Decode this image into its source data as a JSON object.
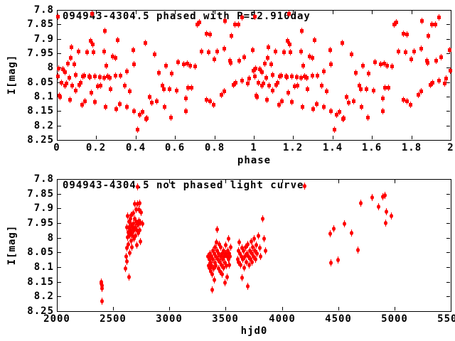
{
  "figure": {
    "background": "#ffffff",
    "point_color": "#ff0000",
    "axis_color": "#000000"
  },
  "chart_data": [
    {
      "type": "scatter",
      "title": "094943-4304.5 phased with P=52.910day",
      "xlabel": "phase",
      "ylabel": "I[mag]",
      "xlim": [
        0,
        2
      ],
      "ylim": [
        7.8,
        8.25
      ],
      "y_axis_inverted": true,
      "grid": false,
      "legend": "none",
      "marker": "filled-square-with-errorbar",
      "color": "#ff0000",
      "x_repeat_offsets": [
        0,
        1
      ],
      "x_ticks": [
        {
          "v": 0,
          "label": "0"
        },
        {
          "v": 0.2,
          "label": "0.2"
        },
        {
          "v": 0.4,
          "label": "0.4"
        },
        {
          "v": 0.6,
          "label": "0.6"
        },
        {
          "v": 0.8,
          "label": "0.8"
        },
        {
          "v": 1,
          "label": "1"
        },
        {
          "v": 1.2,
          "label": "1.2"
        },
        {
          "v": 1.4,
          "label": "1.4"
        },
        {
          "v": 1.6,
          "label": "1.6"
        },
        {
          "v": 1.8,
          "label": "1.8"
        },
        {
          "v": 2,
          "label": "2"
        }
      ],
      "y_ticks": [
        {
          "v": 7.8,
          "label": "7.8"
        },
        {
          "v": 7.85,
          "label": "7.85"
        },
        {
          "v": 7.9,
          "label": "7.9"
        },
        {
          "v": 7.95,
          "label": "7.95"
        },
        {
          "v": 8,
          "label": "8"
        },
        {
          "v": 8.05,
          "label": "8.05"
        },
        {
          "v": 8.1,
          "label": "8.1"
        },
        {
          "v": 8.15,
          "label": "8.15"
        },
        {
          "v": 8.2,
          "label": "8.2"
        },
        {
          "v": 8.25,
          "label": "8.25"
        }
      ],
      "points": [
        [
          0.002,
          7.823
        ],
        [
          0.005,
          8.029
        ],
        [
          0.007,
          8.001
        ],
        [
          0.011,
          8.094
        ],
        [
          0.015,
          8.1
        ],
        [
          0.02,
          8.05
        ],
        [
          0.03,
          8.005
        ],
        [
          0.041,
          8.013
        ],
        [
          0.041,
          8.061
        ],
        [
          0.046,
          8.054
        ],
        [
          0.054,
          7.985
        ],
        [
          0.062,
          8.033
        ],
        [
          0.065,
          8.11
        ],
        [
          0.07,
          7.964
        ],
        [
          0.072,
          7.927
        ],
        [
          0.075,
          8.061
        ],
        [
          0.086,
          7.988
        ],
        [
          0.094,
          8.023
        ],
        [
          0.095,
          8.077
        ],
        [
          0.108,
          7.942
        ],
        [
          0.112,
          8.057
        ],
        [
          0.12,
          8.051
        ],
        [
          0.127,
          8.127
        ],
        [
          0.129,
          8.028
        ],
        [
          0.137,
          8.027
        ],
        [
          0.14,
          8.114
        ],
        [
          0.15,
          7.944
        ],
        [
          0.161,
          8.028
        ],
        [
          0.165,
          8.03
        ],
        [
          0.168,
          7.905
        ],
        [
          0.173,
          8.085
        ],
        [
          0.176,
          7.812
        ],
        [
          0.181,
          7.917
        ],
        [
          0.185,
          7.946
        ],
        [
          0.191,
          8.028
        ],
        [
          0.193,
          8.118
        ],
        [
          0.206,
          8.062
        ],
        [
          0.215,
          8.03
        ],
        [
          0.221,
          8.061
        ],
        [
          0.239,
          7.942
        ],
        [
          0.239,
          8.033
        ],
        [
          0.241,
          7.872
        ],
        [
          0.245,
          8.134
        ],
        [
          0.249,
          7.993
        ],
        [
          0.257,
          8.028
        ],
        [
          0.267,
          8.034
        ],
        [
          0.269,
          8.073
        ],
        [
          0.283,
          7.96
        ],
        [
          0.296,
          8.025
        ],
        [
          0.297,
          7.964
        ],
        [
          0.299,
          8.143
        ],
        [
          0.308,
          7.903
        ],
        [
          0.318,
          8.125
        ],
        [
          0.32,
          8.025
        ],
        [
          0.342,
          8.061
        ],
        [
          0.353,
          8.012
        ],
        [
          0.353,
          8.134
        ],
        [
          0.37,
          8.08
        ],
        [
          0.388,
          7.938
        ],
        [
          0.39,
          7.988
        ],
        [
          0.39,
          8.15
        ],
        [
          0.408,
          8.212
        ],
        [
          0.42,
          8.162
        ],
        [
          0.432,
          8.151
        ],
        [
          0.446,
          7.912
        ],
        [
          0.45,
          8.175
        ],
        [
          0.455,
          8.174
        ],
        [
          0.47,
          8.1
        ],
        [
          0.48,
          8.12
        ],
        [
          0.495,
          7.953
        ],
        [
          0.504,
          8.114
        ],
        [
          0.516,
          8.016
        ],
        [
          0.534,
          8.061
        ],
        [
          0.54,
          8.073
        ],
        [
          0.546,
          8.134
        ],
        [
          0.552,
          7.991
        ],
        [
          0.57,
          8.073
        ],
        [
          0.577,
          8.172
        ],
        [
          0.582,
          8.02
        ],
        [
          0.606,
          8.077
        ],
        [
          0.612,
          7.979
        ],
        [
          0.642,
          7.987
        ],
        [
          0.654,
          8.106
        ],
        [
          0.655,
          8.149
        ],
        [
          0.66,
          7.985
        ],
        [
          0.666,
          8.069
        ],
        [
          0.676,
          7.991
        ],
        [
          0.684,
          8.069
        ],
        [
          0.702,
          7.995
        ],
        [
          0.711,
          7.849
        ],
        [
          0.723,
          7.843
        ],
        [
          0.733,
          7.942
        ],
        [
          0.757,
          7.881
        ],
        [
          0.757,
          8.11
        ],
        [
          0.769,
          7.946
        ],
        [
          0.775,
          7.884
        ],
        [
          0.775,
          8.114
        ],
        [
          0.793,
          8.126
        ],
        [
          0.799,
          7.969
        ],
        [
          0.813,
          7.942
        ],
        [
          0.835,
          8.093
        ],
        [
          0.847,
          8.081
        ],
        [
          0.849,
          7.934
        ],
        [
          0.853,
          7.836
        ],
        [
          0.877,
          7.975
        ],
        [
          0.881,
          7.983
        ],
        [
          0.883,
          7.889
        ],
        [
          0.895,
          8.057
        ],
        [
          0.901,
          7.849
        ],
        [
          0.907,
          8.051
        ],
        [
          0.919,
          7.848
        ],
        [
          0.925,
          7.975
        ],
        [
          0.937,
          7.824
        ],
        [
          0.937,
          8.044
        ],
        [
          0.951,
          7.962
        ],
        [
          0.967,
          8.053
        ],
        [
          0.973,
          8.037
        ],
        [
          0.992,
          7.938
        ],
        [
          0.997,
          8.008
        ]
      ]
    },
    {
      "type": "scatter",
      "title": "094943-4304.5 not phased light curve",
      "xlabel": "hjd0",
      "ylabel": "I[mag]",
      "xlim": [
        2000,
        5500
      ],
      "ylim": [
        7.8,
        8.25
      ],
      "y_axis_inverted": true,
      "grid": false,
      "legend": "none",
      "marker": "filled-circle-with-errorbar",
      "color": "#ff0000",
      "x_repeat_offsets": [
        0
      ],
      "x_ticks": [
        {
          "v": 2000,
          "label": "2000"
        },
        {
          "v": 2500,
          "label": "2500"
        },
        {
          "v": 3000,
          "label": "3000"
        },
        {
          "v": 3500,
          "label": "3500"
        },
        {
          "v": 4000,
          "label": "4000"
        },
        {
          "v": 4500,
          "label": "4500"
        },
        {
          "v": 5000,
          "label": "5000"
        },
        {
          "v": 5500,
          "label": "5500"
        }
      ],
      "y_ticks": [
        {
          "v": 7.8,
          "label": "7.8"
        },
        {
          "v": 7.85,
          "label": "7.85"
        },
        {
          "v": 7.9,
          "label": "7.9"
        },
        {
          "v": 7.95,
          "label": "7.95"
        },
        {
          "v": 8,
          "label": "8"
        },
        {
          "v": 8.05,
          "label": "8.05"
        },
        {
          "v": 8.1,
          "label": "8.1"
        },
        {
          "v": 8.15,
          "label": "8.15"
        },
        {
          "v": 8.2,
          "label": "8.2"
        },
        {
          "v": 8.25,
          "label": "8.25"
        }
      ],
      "points": [
        [
          2390,
          8.149
        ],
        [
          2394,
          8.154
        ],
        [
          2396,
          8.161
        ],
        [
          2399,
          8.17
        ],
        [
          2398,
          8.213
        ],
        [
          2608,
          8.103
        ],
        [
          2612,
          8.062
        ],
        [
          2616,
          8.033
        ],
        [
          2620,
          8.078
        ],
        [
          2622,
          7.961
        ],
        [
          2625,
          7.996
        ],
        [
          2628,
          7.924
        ],
        [
          2631,
          7.979
        ],
        [
          2634,
          8.021
        ],
        [
          2637,
          7.943
        ],
        [
          2640,
          8.131
        ],
        [
          2641,
          7.962
        ],
        [
          2644,
          7.989
        ],
        [
          2647,
          8.049
        ],
        [
          2650,
          7.932
        ],
        [
          2652,
          7.972
        ],
        [
          2655,
          8.009
        ],
        [
          2658,
          7.952
        ],
        [
          2660,
          7.921
        ],
        [
          2663,
          7.981
        ],
        [
          2666,
          8.031
        ],
        [
          2669,
          7.962
        ],
        [
          2672,
          7.992
        ],
        [
          2675,
          7.913
        ],
        [
          2678,
          7.951
        ],
        [
          2681,
          8.001
        ],
        [
          2684,
          7.971
        ],
        [
          2687,
          7.932
        ],
        [
          2690,
          7.882
        ],
        [
          2693,
          7.961
        ],
        [
          2696,
          7.991
        ],
        [
          2699,
          7.942
        ],
        [
          2702,
          7.901
        ],
        [
          2705,
          7.971
        ],
        [
          2708,
          8.022
        ],
        [
          2711,
          7.951
        ],
        [
          2714,
          7.883
        ],
        [
          2717,
          7.824
        ],
        [
          2720,
          7.952
        ],
        [
          2723,
          7.981
        ],
        [
          2726,
          7.902
        ],
        [
          2729,
          7.941
        ],
        [
          2732,
          7.879
        ],
        [
          2735,
          7.972
        ],
        [
          2738,
          8.011
        ],
        [
          2742,
          7.944
        ],
        [
          2748,
          7.912
        ],
        [
          2756,
          7.951
        ],
        [
          3342,
          8.061
        ],
        [
          3346,
          8.092
        ],
        [
          3350,
          8.072
        ],
        [
          3354,
          8.101
        ],
        [
          3358,
          8.052
        ],
        [
          3362,
          8.082
        ],
        [
          3366,
          8.112
        ],
        [
          3370,
          8.062
        ],
        [
          3374,
          8.092
        ],
        [
          3376,
          8.122
        ],
        [
          3380,
          8.176
        ],
        [
          3382,
          8.041
        ],
        [
          3386,
          8.071
        ],
        [
          3390,
          8.102
        ],
        [
          3394,
          8.052
        ],
        [
          3396,
          8.141
        ],
        [
          3400,
          8.082
        ],
        [
          3404,
          8.031
        ],
        [
          3408,
          8.061
        ],
        [
          3412,
          8.092
        ],
        [
          3416,
          8.012
        ],
        [
          3420,
          7.97
        ],
        [
          3424,
          8.042
        ],
        [
          3428,
          8.072
        ],
        [
          3432,
          8.102
        ],
        [
          3436,
          8.052
        ],
        [
          3440,
          8.021
        ],
        [
          3444,
          8.081
        ],
        [
          3448,
          8.111
        ],
        [
          3452,
          8.061
        ],
        [
          3456,
          8.031
        ],
        [
          3460,
          8.091
        ],
        [
          3464,
          8.051
        ],
        [
          3468,
          8.121
        ],
        [
          3472,
          8.071
        ],
        [
          3476,
          8.041
        ],
        [
          3480,
          8.101
        ],
        [
          3484,
          8.061
        ],
        [
          3488,
          8.152
        ],
        [
          3492,
          8.082
        ],
        [
          3496,
          8.052
        ],
        [
          3500,
          8.022
        ],
        [
          3504,
          8.092
        ],
        [
          3508,
          8.062
        ],
        [
          3512,
          8.132
        ],
        [
          3516,
          8.042
        ],
        [
          3520,
          8.072
        ],
        [
          3524,
          8.002
        ],
        [
          3528,
          8.052
        ],
        [
          3532,
          8.091
        ],
        [
          3536,
          8.061
        ],
        [
          3540,
          8.031
        ],
        [
          3602,
          8.072
        ],
        [
          3608,
          8.042
        ],
        [
          3614,
          8.081
        ],
        [
          3620,
          8.012
        ],
        [
          3626,
          8.052
        ],
        [
          3632,
          8.091
        ],
        [
          3638,
          8.062
        ],
        [
          3640,
          8.135
        ],
        [
          3644,
          8.032
        ],
        [
          3650,
          8.071
        ],
        [
          3656,
          8.041
        ],
        [
          3662,
          8.101
        ],
        [
          3668,
          8.061
        ],
        [
          3674,
          8.031
        ],
        [
          3680,
          8.081
        ],
        [
          3686,
          8.051
        ],
        [
          3692,
          8.021
        ],
        [
          3696,
          8.164
        ],
        [
          3698,
          8.061
        ],
        [
          3704,
          8.091
        ],
        [
          3710,
          8.041
        ],
        [
          3716,
          8.071
        ],
        [
          3722,
          8.011
        ],
        [
          3728,
          8.051
        ],
        [
          3734,
          8.081
        ],
        [
          3740,
          8.031
        ],
        [
          3746,
          8.061
        ],
        [
          3752,
          8.001
        ],
        [
          3758,
          8.041
        ],
        [
          3764,
          8.071
        ],
        [
          3770,
          8.022
        ],
        [
          3776,
          8.052
        ],
        [
          3790,
          7.991
        ],
        [
          3800,
          8.032
        ],
        [
          3810,
          8.062
        ],
        [
          3823,
          7.933
        ],
        [
          3836,
          8.002
        ],
        [
          3850,
          8.041
        ],
        [
          4197,
          7.821
        ],
        [
          4429,
          7.985
        ],
        [
          4432,
          8.084
        ],
        [
          4460,
          7.967
        ],
        [
          4498,
          8.074
        ],
        [
          4555,
          7.949
        ],
        [
          4618,
          7.982
        ],
        [
          4675,
          8.039
        ],
        [
          4696,
          7.879
        ],
        [
          4801,
          7.861
        ],
        [
          4854,
          7.891
        ],
        [
          4896,
          7.857
        ],
        [
          4911,
          7.854
        ],
        [
          4921,
          7.947
        ],
        [
          4928,
          7.91
        ],
        [
          4970,
          7.924
        ]
      ]
    }
  ]
}
